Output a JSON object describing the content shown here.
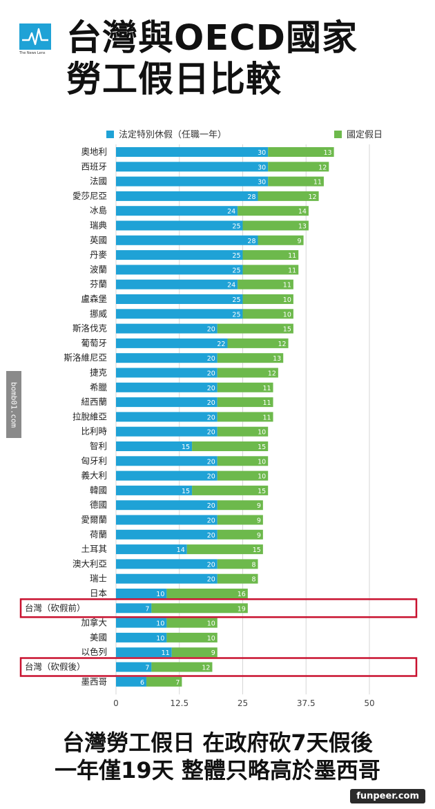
{
  "brand": {
    "logo_text": "The News Lens"
  },
  "title_lines": [
    "台灣與OECD國家",
    "勞工假日比較"
  ],
  "subtitle_lines": [
    "台灣勞工假日 在政府砍7天假後",
    "一年僅19天 整體只略高於墨西哥"
  ],
  "watermark_side": "bomb01.com",
  "watermark_corner": "funpeer.com",
  "colors": {
    "statutory": "#1fa2d6",
    "holidays": "#6db94c",
    "highlight": "#c8102e",
    "grid": "#d6d6d6"
  },
  "chart_data": {
    "type": "bar",
    "orientation": "horizontal",
    "stacked": true,
    "legend_position": "top",
    "grid": true,
    "xlim": [
      0,
      50
    ],
    "xticks": [
      "0",
      "12.5",
      "25",
      "37.5",
      "50"
    ],
    "highlighted": [
      "台灣（砍假前）",
      "台灣（砍假後）"
    ],
    "categories": [
      "奧地利",
      "西班牙",
      "法國",
      "愛莎尼亞",
      "冰島",
      "瑞典",
      "英國",
      "丹麥",
      "波蘭",
      "芬蘭",
      "盧森堡",
      "挪威",
      "斯洛伐克",
      "葡萄牙",
      "斯洛維尼亞",
      "捷克",
      "希臘",
      "紐西蘭",
      "拉脫維亞",
      "比利時",
      "智利",
      "匈牙利",
      "義大利",
      "韓國",
      "德國",
      "愛爾蘭",
      "荷蘭",
      "土耳其",
      "澳大利亞",
      "瑞士",
      "日本",
      "台灣（砍假前）",
      "加拿大",
      "美國",
      "以色列",
      "台灣（砍假後）",
      "墨西哥"
    ],
    "series": [
      {
        "name": "法定特別休假（任職一年）",
        "values": [
          30,
          30,
          30,
          28,
          24,
          25,
          28,
          25,
          25,
          24,
          25,
          25,
          20,
          22,
          20,
          20,
          20,
          20,
          20,
          20,
          15,
          20,
          20,
          15,
          20,
          20,
          20,
          14,
          20,
          20,
          10,
          7,
          10,
          10,
          11,
          7,
          6
        ]
      },
      {
        "name": "國定假日",
        "values": [
          13,
          12,
          11,
          12,
          14,
          13,
          9,
          11,
          11,
          11,
          10,
          10,
          15,
          12,
          13,
          12,
          11,
          11,
          11,
          10,
          15,
          10,
          10,
          15,
          9,
          9,
          9,
          15,
          8,
          8,
          16,
          19,
          10,
          10,
          9,
          12,
          7
        ]
      }
    ]
  }
}
